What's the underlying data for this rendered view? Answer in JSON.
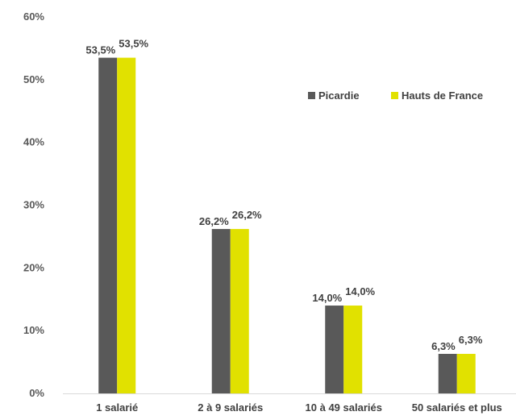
{
  "chart_data": {
    "type": "bar",
    "categories": [
      "1 salarié",
      "2 à 9 salariés",
      "10 à 49 salariés",
      "50 salariés et plus"
    ],
    "series": [
      {
        "name": "Picardie",
        "color": "#595959",
        "values": [
          53.5,
          26.2,
          14.0,
          6.3
        ],
        "labels": [
          "53,5%",
          "26,2%",
          "14,0%",
          "6,3%"
        ]
      },
      {
        "name": "Hauts de France",
        "color": "#E1E100",
        "values": [
          53.5,
          26.2,
          14.0,
          6.3
        ],
        "labels": [
          "53,5%",
          "26,2%",
          "14,0%",
          "6,3%"
        ]
      }
    ],
    "yticks": [
      {
        "value": 0,
        "label": "0%"
      },
      {
        "value": 10,
        "label": "10%"
      },
      {
        "value": 20,
        "label": "20%"
      },
      {
        "value": 30,
        "label": "30%"
      },
      {
        "value": 40,
        "label": "40%"
      },
      {
        "value": 50,
        "label": "50%"
      },
      {
        "value": 60,
        "label": "60%"
      }
    ],
    "ylim": [
      0,
      60
    ],
    "grid": false,
    "legend_position": "right"
  }
}
